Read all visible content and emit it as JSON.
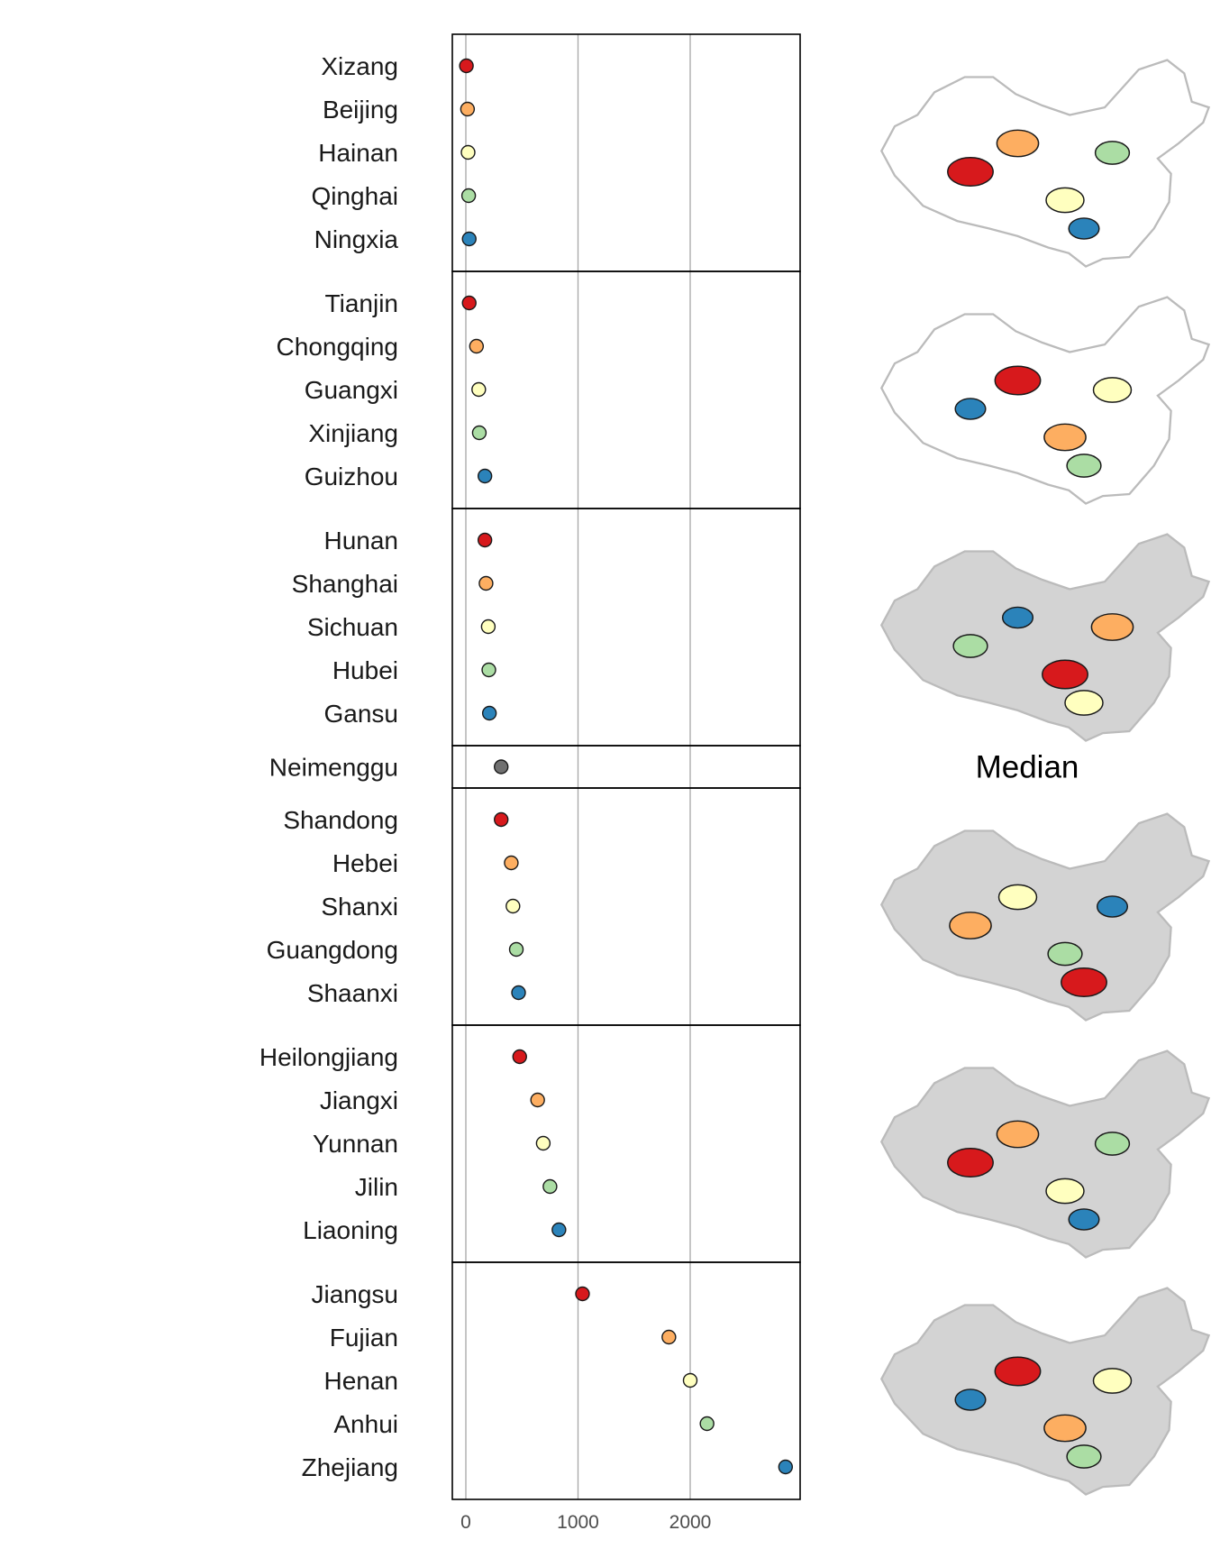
{
  "colors": {
    "rank1": "#d7191c",
    "rank2": "#fdae61",
    "rank3": "#ffffbf",
    "rank4": "#abdda4",
    "rank5": "#2b83ba",
    "median": "#707070",
    "map_context": "#d3d3d3",
    "map_outline": "#bbbbbb"
  },
  "chart_data": {
    "type": "scatter",
    "x_ticks": [
      0,
      1000,
      2000
    ],
    "xlim": [
      -130,
      2960
    ],
    "grid": "vertical lines at major ticks",
    "median_label": "Median",
    "groups": [
      {
        "points": [
          {
            "name": "Xizang",
            "value": 5,
            "rank": 1
          },
          {
            "name": "Beijing",
            "value": 15,
            "rank": 2
          },
          {
            "name": "Hainan",
            "value": 20,
            "rank": 3
          },
          {
            "name": "Qinghai",
            "value": 25,
            "rank": 4
          },
          {
            "name": "Ningxia",
            "value": 30,
            "rank": 5
          }
        ]
      },
      {
        "points": [
          {
            "name": "Tianjin",
            "value": 30,
            "rank": 1
          },
          {
            "name": "Chongqing",
            "value": 95,
            "rank": 2
          },
          {
            "name": "Guangxi",
            "value": 115,
            "rank": 3
          },
          {
            "name": "Xinjiang",
            "value": 120,
            "rank": 4
          },
          {
            "name": "Guizhou",
            "value": 170,
            "rank": 5
          }
        ]
      },
      {
        "points": [
          {
            "name": "Hunan",
            "value": 170,
            "rank": 1
          },
          {
            "name": "Shanghai",
            "value": 180,
            "rank": 2
          },
          {
            "name": "Sichuan",
            "value": 200,
            "rank": 3
          },
          {
            "name": "Hubei",
            "value": 205,
            "rank": 4
          },
          {
            "name": "Gansu",
            "value": 210,
            "rank": 5
          }
        ]
      },
      {
        "median": true,
        "points": [
          {
            "name": "Neimenggu",
            "value": 315,
            "rank": 0
          }
        ]
      },
      {
        "points": [
          {
            "name": "Shandong",
            "value": 315,
            "rank": 1
          },
          {
            "name": "Hebei",
            "value": 405,
            "rank": 2
          },
          {
            "name": "Shanxi",
            "value": 420,
            "rank": 3
          },
          {
            "name": "Guangdong",
            "value": 450,
            "rank": 4
          },
          {
            "name": "Shaanxi",
            "value": 470,
            "rank": 5
          }
        ]
      },
      {
        "points": [
          {
            "name": "Heilongjiang",
            "value": 480,
            "rank": 1
          },
          {
            "name": "Jiangxi",
            "value": 640,
            "rank": 2
          },
          {
            "name": "Yunnan",
            "value": 690,
            "rank": 3
          },
          {
            "name": "Jilin",
            "value": 750,
            "rank": 4
          },
          {
            "name": "Liaoning",
            "value": 830,
            "rank": 5
          }
        ]
      },
      {
        "points": [
          {
            "name": "Jiangsu",
            "value": 1040,
            "rank": 1
          },
          {
            "name": "Fujian",
            "value": 1810,
            "rank": 2
          },
          {
            "name": "Henan",
            "value": 2000,
            "rank": 3
          },
          {
            "name": "Anhui",
            "value": 2150,
            "rank": 4
          },
          {
            "name": "Zhejiang",
            "value": 2850,
            "rank": 5
          }
        ]
      }
    ]
  }
}
